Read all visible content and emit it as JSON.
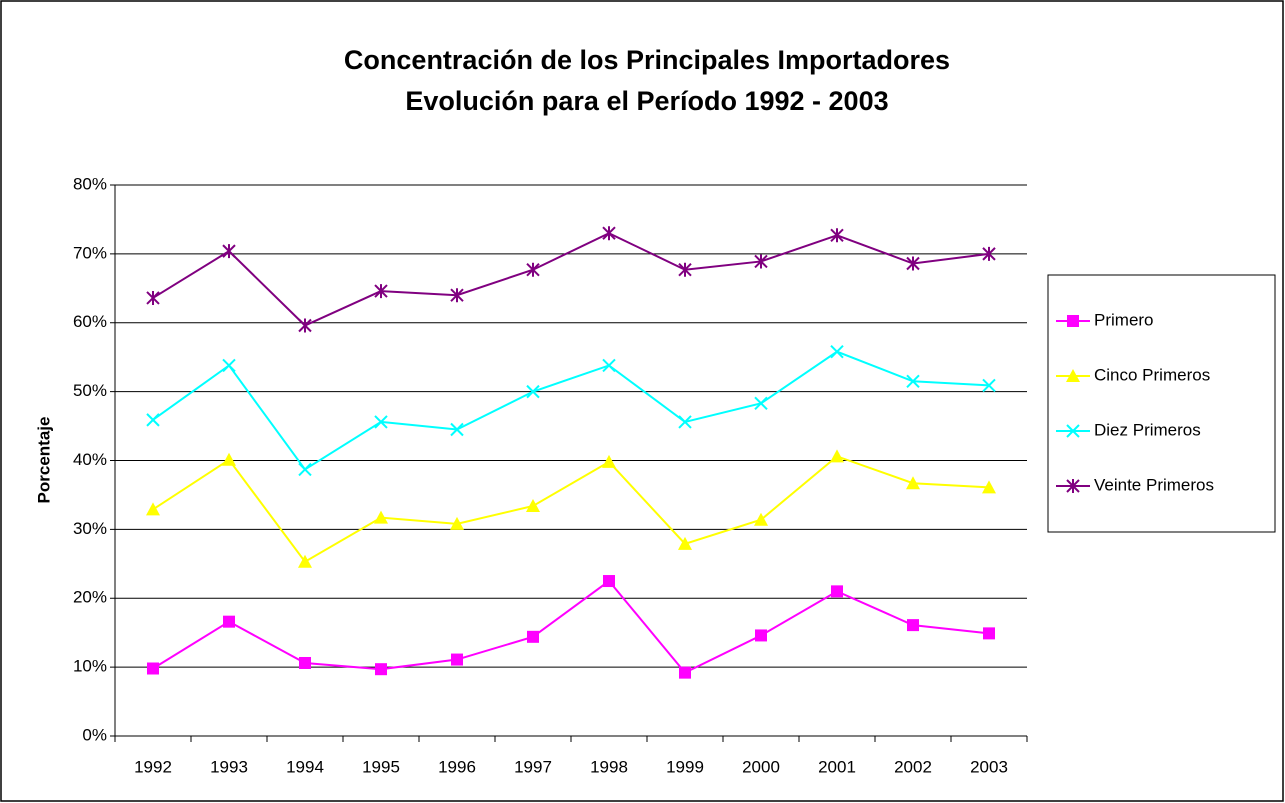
{
  "chart_data": {
    "type": "line",
    "title": "Concentración de los Principales Importadores",
    "subtitle": "Evolución para el Período 1992 - 2003",
    "y_label": "Porcentaje",
    "categories": [
      "1992",
      "1993",
      "1994",
      "1995",
      "1996",
      "1997",
      "1998",
      "1999",
      "2000",
      "2001",
      "2002",
      "2003"
    ],
    "series": [
      {
        "name": "Primero",
        "color": "#ff00ff",
        "marker": "square",
        "values": [
          9.8,
          16.6,
          10.6,
          9.7,
          11.1,
          14.4,
          22.5,
          9.2,
          14.6,
          21.0,
          16.1,
          14.9
        ]
      },
      {
        "name": "Cinco Primeros",
        "color": "#ffff00",
        "marker": "triangle",
        "values": [
          32.9,
          40.1,
          25.3,
          31.7,
          30.8,
          33.4,
          39.8,
          27.9,
          31.4,
          40.6,
          36.7,
          36.1
        ]
      },
      {
        "name": "Diez Primeros",
        "color": "#00ffff",
        "marker": "x",
        "values": [
          45.9,
          53.8,
          38.7,
          45.6,
          44.5,
          50.0,
          53.8,
          45.6,
          48.3,
          55.8,
          51.5,
          50.9
        ]
      },
      {
        "name": "Veinte Primeros",
        "color": "#800080",
        "marker": "star",
        "values": [
          63.6,
          70.4,
          59.6,
          64.6,
          64.0,
          67.7,
          73.0,
          67.7,
          68.9,
          72.7,
          68.6,
          70.0
        ]
      }
    ],
    "ylim": [
      0,
      80
    ],
    "yticks": [
      {
        "value": 0,
        "label": "0%"
      },
      {
        "value": 10,
        "label": "10%"
      },
      {
        "value": 20,
        "label": "20%"
      },
      {
        "value": 30,
        "label": "30%"
      },
      {
        "value": 40,
        "label": "40%"
      },
      {
        "value": 50,
        "label": "50%"
      },
      {
        "value": 60,
        "label": "60%"
      },
      {
        "value": 70,
        "label": "70%"
      },
      {
        "value": 80,
        "label": "80%"
      }
    ],
    "grid": true,
    "legend": "right"
  }
}
